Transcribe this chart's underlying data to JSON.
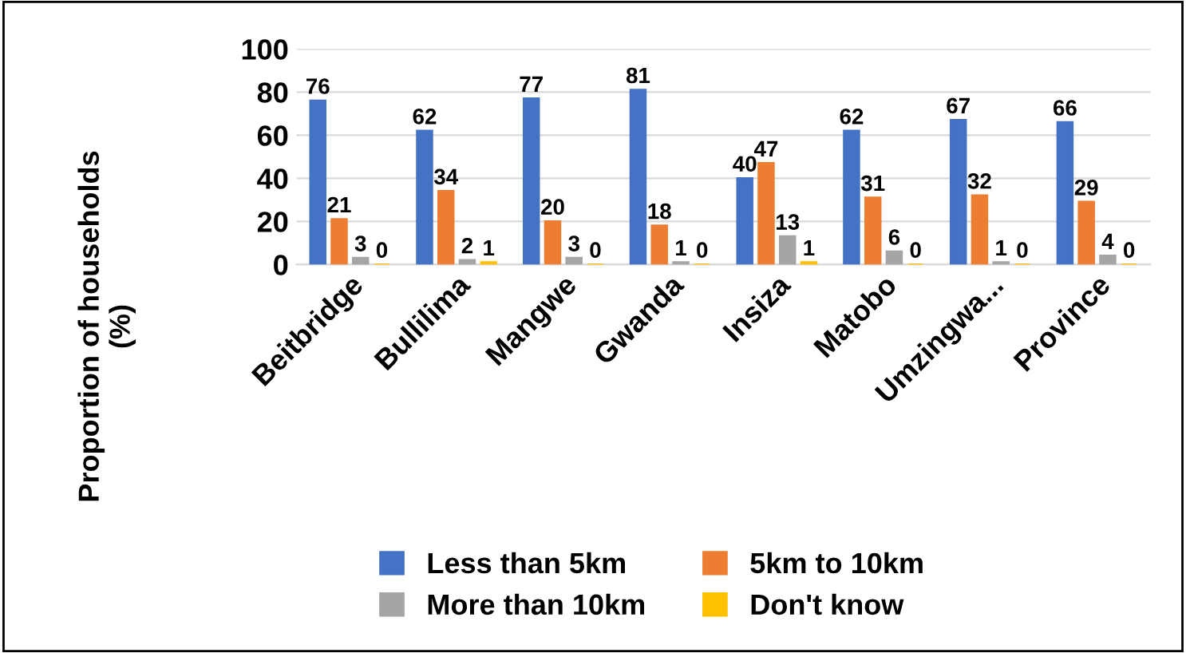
{
  "chart_data": {
    "type": "bar",
    "ylabel": "Proportion of households\n(%)",
    "categories": [
      "Beitbridge",
      "Bullilima",
      "Mangwe",
      "Gwanda",
      "Insiza",
      "Matobo",
      "Umzingwa...",
      "Province"
    ],
    "series": [
      {
        "name": "Less than 5km",
        "color": "#4472c4",
        "values": [
          76,
          62,
          77,
          81,
          40,
          62,
          67,
          66
        ]
      },
      {
        "name": "5km to 10km",
        "color": "#ed7d31",
        "values": [
          21,
          34,
          20,
          18,
          47,
          31,
          32,
          29
        ]
      },
      {
        "name": "More than 10km",
        "color": "#a5a5a5",
        "values": [
          3,
          2,
          3,
          1,
          13,
          6,
          1,
          4
        ]
      },
      {
        "name": "Don't know",
        "color": "#ffc000",
        "values": [
          0,
          1,
          0,
          0,
          1,
          0,
          0,
          0
        ]
      }
    ],
    "ylim": [
      0,
      100
    ],
    "yticks": [
      0,
      20,
      40,
      60,
      80,
      100
    ],
    "grid": "y",
    "legend": "bottom",
    "data_labels": true
  }
}
